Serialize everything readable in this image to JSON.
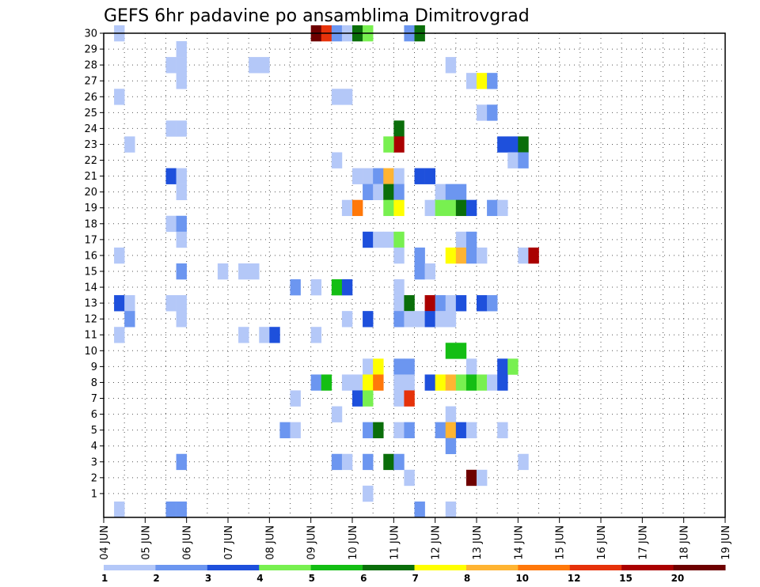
{
  "chart_data": {
    "type": "heatmap",
    "title": "GEFS 6hr padavine po ansamblima Dimitrovgrad",
    "y_ticks": [
      "1",
      "2",
      "3",
      "4",
      "5",
      "6",
      "7",
      "8",
      "9",
      "10",
      "11",
      "12",
      "13",
      "14",
      "15",
      "16",
      "17",
      "18",
      "19",
      "20",
      "21",
      "22",
      "23",
      "24",
      "25",
      "26",
      "27",
      "28",
      "29",
      "30"
    ],
    "x_ticks": [
      "04 JUN",
      "05 JUN",
      "06 JUN",
      "07 JUN",
      "08 JUN",
      "09 JUN",
      "10 JUN",
      "11 JUN",
      "12 JUN",
      "13 JUN",
      "14 JUN",
      "15 JUN",
      "16 JUN",
      "17 JUN",
      "18 JUN",
      "19 JUN"
    ],
    "x_steps_per_day": 4,
    "color_scale": {
      "labels": [
        "1",
        "2",
        "3",
        "4",
        "5",
        "6",
        "7",
        "8",
        "10",
        "12",
        "15",
        "20"
      ],
      "colors": [
        "#b4c8f8",
        "#6c96f0",
        "#1e50dc",
        "#78f050",
        "#14be14",
        "#0a6e0a",
        "#ffff00",
        "#ffb432",
        "#ff780a",
        "#e6320a",
        "#aa0000",
        "#6e0000"
      ]
    },
    "cells": [
      [
        1,
        30,
        0
      ],
      [
        20,
        30,
        11
      ],
      [
        21,
        30,
        9
      ],
      [
        22,
        30,
        1
      ],
      [
        23,
        30,
        0
      ],
      [
        24,
        30,
        5
      ],
      [
        25,
        30,
        3
      ],
      [
        29,
        30,
        1
      ],
      [
        30,
        30,
        5
      ],
      [
        7,
        29,
        0
      ],
      [
        6,
        28,
        0
      ],
      [
        7,
        28,
        0
      ],
      [
        14,
        28,
        0
      ],
      [
        15,
        28,
        0
      ],
      [
        33,
        28,
        0
      ],
      [
        35,
        27,
        0
      ],
      [
        36,
        27,
        6
      ],
      [
        37,
        27,
        1
      ],
      [
        7,
        27,
        0
      ],
      [
        1,
        26,
        0
      ],
      [
        22,
        26,
        0
      ],
      [
        23,
        26,
        0
      ],
      [
        36,
        25,
        0
      ],
      [
        37,
        25,
        1
      ],
      [
        6,
        24,
        0
      ],
      [
        7,
        24,
        0
      ],
      [
        28,
        24,
        5
      ],
      [
        28,
        23,
        10
      ],
      [
        27,
        23,
        3
      ],
      [
        2,
        23,
        0
      ],
      [
        38,
        23,
        2
      ],
      [
        39,
        23,
        2
      ],
      [
        40,
        23,
        5
      ],
      [
        22,
        22,
        0
      ],
      [
        39,
        22,
        0
      ],
      [
        40,
        22,
        1
      ],
      [
        6,
        21,
        2
      ],
      [
        7,
        21,
        0
      ],
      [
        24,
        21,
        0
      ],
      [
        25,
        21,
        0
      ],
      [
        26,
        21,
        1
      ],
      [
        27,
        21,
        7
      ],
      [
        28,
        21,
        0
      ],
      [
        30,
        21,
        2
      ],
      [
        31,
        21,
        2
      ],
      [
        7,
        20,
        0
      ],
      [
        25,
        20,
        1
      ],
      [
        26,
        20,
        0
      ],
      [
        27,
        20,
        5
      ],
      [
        28,
        20,
        1
      ],
      [
        32,
        20,
        0
      ],
      [
        33,
        20,
        1
      ],
      [
        34,
        20,
        1
      ],
      [
        23,
        19,
        0
      ],
      [
        24,
        19,
        8
      ],
      [
        27,
        19,
        3
      ],
      [
        28,
        19,
        6
      ],
      [
        31,
        19,
        0
      ],
      [
        32,
        19,
        3
      ],
      [
        33,
        19,
        3
      ],
      [
        34,
        19,
        5
      ],
      [
        35,
        19,
        2
      ],
      [
        37,
        19,
        1
      ],
      [
        38,
        19,
        0
      ],
      [
        6,
        18,
        0
      ],
      [
        7,
        18,
        1
      ],
      [
        7,
        17,
        0
      ],
      [
        25,
        17,
        2
      ],
      [
        26,
        17,
        0
      ],
      [
        27,
        17,
        0
      ],
      [
        28,
        17,
        3
      ],
      [
        34,
        17,
        0
      ],
      [
        35,
        17,
        1
      ],
      [
        1,
        16,
        0
      ],
      [
        28,
        16,
        0
      ],
      [
        30,
        16,
        1
      ],
      [
        33,
        16,
        6
      ],
      [
        34,
        16,
        7
      ],
      [
        35,
        16,
        1
      ],
      [
        36,
        16,
        0
      ],
      [
        40,
        16,
        0
      ],
      [
        41,
        16,
        10
      ],
      [
        7,
        15,
        1
      ],
      [
        11,
        15,
        0
      ],
      [
        13,
        15,
        0
      ],
      [
        14,
        15,
        0
      ],
      [
        30,
        15,
        1
      ],
      [
        31,
        15,
        0
      ],
      [
        18,
        14,
        1
      ],
      [
        20,
        14,
        0
      ],
      [
        22,
        14,
        4
      ],
      [
        23,
        14,
        2
      ],
      [
        28,
        14,
        0
      ],
      [
        1,
        13,
        2
      ],
      [
        2,
        13,
        0
      ],
      [
        6,
        13,
        0
      ],
      [
        7,
        13,
        0
      ],
      [
        28,
        13,
        0
      ],
      [
        29,
        13,
        5
      ],
      [
        31,
        13,
        10
      ],
      [
        32,
        13,
        1
      ],
      [
        33,
        13,
        0
      ],
      [
        34,
        13,
        2
      ],
      [
        36,
        13,
        2
      ],
      [
        37,
        13,
        1
      ],
      [
        2,
        12,
        1
      ],
      [
        7,
        12,
        0
      ],
      [
        23,
        12,
        0
      ],
      [
        25,
        12,
        2
      ],
      [
        28,
        12,
        1
      ],
      [
        29,
        12,
        0
      ],
      [
        30,
        12,
        0
      ],
      [
        31,
        12,
        2
      ],
      [
        32,
        12,
        0
      ],
      [
        33,
        12,
        0
      ],
      [
        1,
        11,
        0
      ],
      [
        13,
        11,
        0
      ],
      [
        15,
        11,
        0
      ],
      [
        16,
        11,
        2
      ],
      [
        20,
        11,
        0
      ],
      [
        33,
        10,
        4
      ],
      [
        34,
        10,
        4
      ],
      [
        25,
        9,
        0
      ],
      [
        26,
        9,
        6
      ],
      [
        28,
        9,
        1
      ],
      [
        29,
        9,
        1
      ],
      [
        35,
        9,
        0
      ],
      [
        38,
        9,
        2
      ],
      [
        39,
        9,
        3
      ],
      [
        20,
        8,
        1
      ],
      [
        21,
        8,
        4
      ],
      [
        23,
        8,
        0
      ],
      [
        24,
        8,
        0
      ],
      [
        25,
        8,
        6
      ],
      [
        26,
        8,
        8
      ],
      [
        28,
        8,
        0
      ],
      [
        29,
        8,
        0
      ],
      [
        31,
        8,
        2
      ],
      [
        32,
        8,
        6
      ],
      [
        33,
        8,
        7
      ],
      [
        34,
        8,
        3
      ],
      [
        35,
        8,
        4
      ],
      [
        36,
        8,
        3
      ],
      [
        37,
        8,
        0
      ],
      [
        38,
        8,
        2
      ],
      [
        18,
        7,
        0
      ],
      [
        24,
        7,
        2
      ],
      [
        25,
        7,
        3
      ],
      [
        28,
        7,
        0
      ],
      [
        29,
        7,
        9
      ],
      [
        22,
        6,
        0
      ],
      [
        33,
        6,
        0
      ],
      [
        17,
        5,
        1
      ],
      [
        18,
        5,
        0
      ],
      [
        25,
        5,
        1
      ],
      [
        26,
        5,
        5
      ],
      [
        28,
        5,
        0
      ],
      [
        29,
        5,
        1
      ],
      [
        32,
        5,
        1
      ],
      [
        33,
        5,
        7
      ],
      [
        34,
        5,
        2
      ],
      [
        35,
        5,
        0
      ],
      [
        38,
        5,
        0
      ],
      [
        33,
        4,
        1
      ],
      [
        7,
        3,
        1
      ],
      [
        22,
        3,
        1
      ],
      [
        23,
        3,
        0
      ],
      [
        25,
        3,
        1
      ],
      [
        27,
        3,
        5
      ],
      [
        28,
        3,
        1
      ],
      [
        40,
        3,
        0
      ],
      [
        35,
        2,
        11
      ],
      [
        36,
        2,
        0
      ],
      [
        29,
        2,
        0
      ],
      [
        25,
        1,
        0
      ],
      [
        1,
        0,
        0
      ],
      [
        6,
        0,
        1
      ],
      [
        7,
        0,
        1
      ],
      [
        30,
        0,
        1
      ],
      [
        33,
        0,
        0
      ]
    ]
  }
}
